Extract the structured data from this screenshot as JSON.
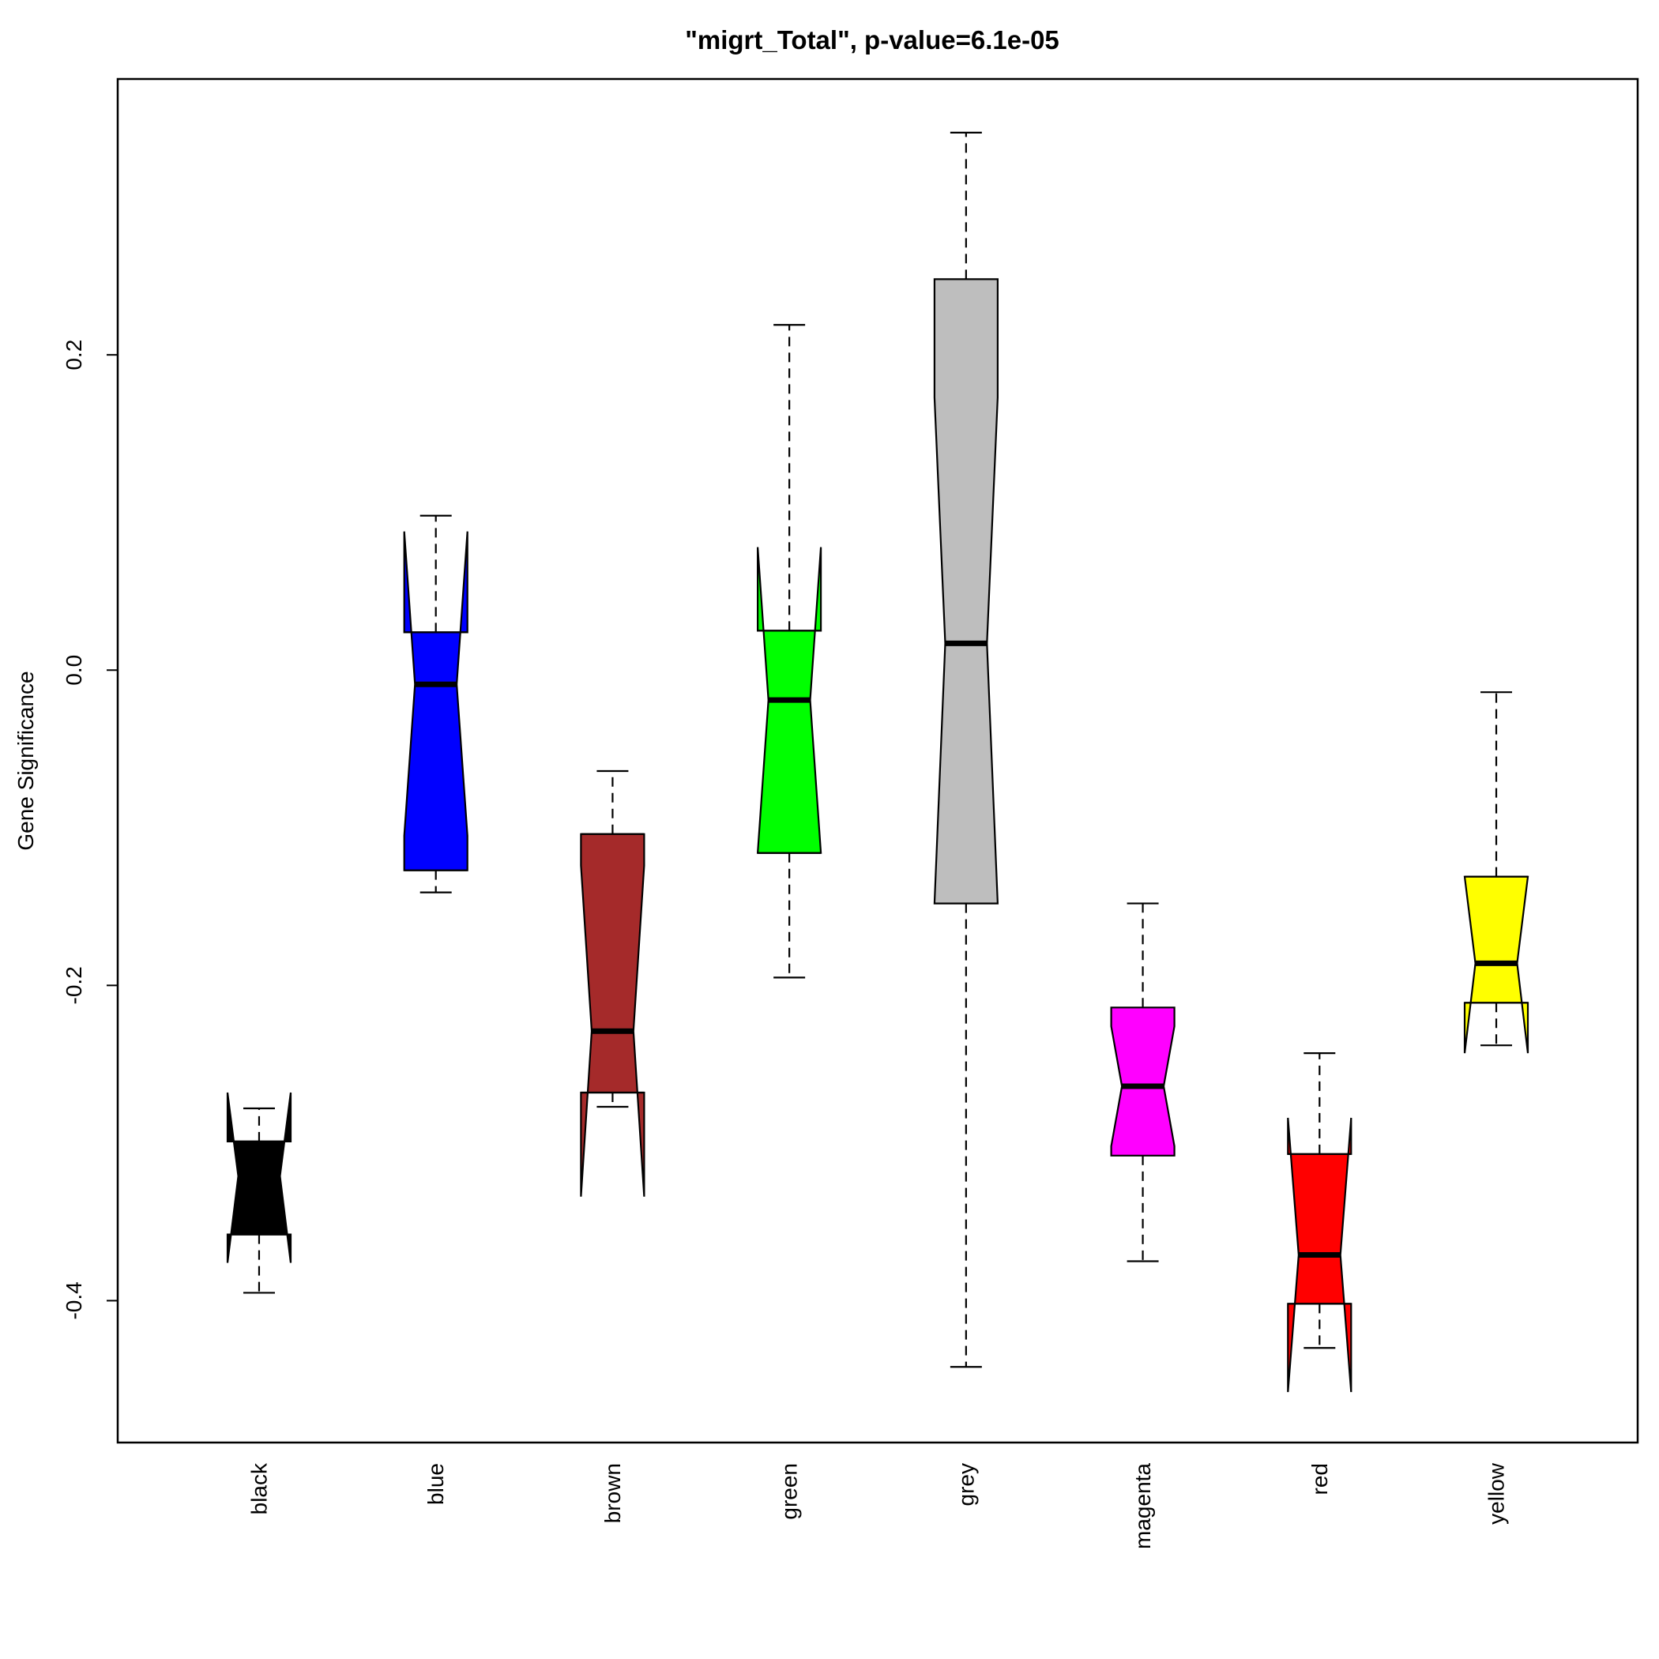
{
  "chart_data": {
    "type": "boxplot",
    "title": "\"migrt_Total\", p-value=6.1e-05",
    "xlabel": "",
    "ylabel": "Gene Significance",
    "ylim": [
      -0.49,
      0.375
    ],
    "yticks": [
      0.2,
      0.0,
      -0.2,
      -0.4
    ],
    "ytick_labels": [
      "0.2",
      "0.0",
      "-0.2",
      "-0.4"
    ],
    "notched": true,
    "grid": false,
    "legend": "none",
    "categories": [
      "black",
      "blue",
      "brown",
      "green",
      "grey",
      "magenta",
      "red",
      "yellow"
    ],
    "boxes": [
      {
        "name": "black",
        "color": "#000000",
        "whisker_low": -0.395,
        "q1": -0.358,
        "median": -0.321,
        "q3": -0.299,
        "whisker_high": -0.278,
        "notch_low": -0.376,
        "notch_high": -0.268
      },
      {
        "name": "blue",
        "color": "#0000ff",
        "whisker_low": -0.141,
        "q1": -0.127,
        "median": -0.009,
        "q3": 0.024,
        "whisker_high": 0.098,
        "notch_low": -0.105,
        "notch_high": 0.088
      },
      {
        "name": "brown",
        "color": "#a52a2a",
        "whisker_low": -0.277,
        "q1": -0.268,
        "median": -0.229,
        "q3": -0.104,
        "whisker_high": -0.064,
        "notch_low": -0.334,
        "notch_high": -0.124
      },
      {
        "name": "green",
        "color": "#00ff00",
        "whisker_low": -0.195,
        "q1": -0.116,
        "median": -0.019,
        "q3": 0.025,
        "whisker_high": 0.219,
        "notch_low": -0.116,
        "notch_high": 0.078
      },
      {
        "name": "grey",
        "color": "#bebebe",
        "whisker_low": -0.442,
        "q1": -0.148,
        "median": 0.017,
        "q3": 0.248,
        "whisker_high": 0.341,
        "notch_low": -0.148,
        "notch_high": 0.173
      },
      {
        "name": "magenta",
        "color": "#ff00ff",
        "whisker_low": -0.375,
        "q1": -0.308,
        "median": -0.264,
        "q3": -0.214,
        "whisker_high": -0.148,
        "notch_low": -0.302,
        "notch_high": -0.226
      },
      {
        "name": "red",
        "color": "#ff0000",
        "whisker_low": -0.43,
        "q1": -0.402,
        "median": -0.371,
        "q3": -0.307,
        "whisker_high": -0.243,
        "notch_low": -0.458,
        "notch_high": -0.284
      },
      {
        "name": "yellow",
        "color": "#ffff00",
        "whisker_low": -0.238,
        "q1": -0.211,
        "median": -0.186,
        "q3": -0.131,
        "whisker_high": -0.014,
        "notch_low": -0.243,
        "notch_high": -0.131
      }
    ]
  }
}
